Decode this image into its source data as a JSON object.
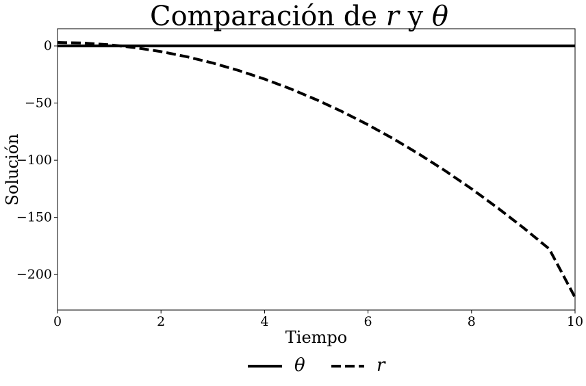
{
  "chart_data": {
    "type": "line",
    "title": "Comparación de r y θ",
    "title_parts": {
      "prefix": "Comparación de ",
      "var1": "r",
      "mid": " y ",
      "var2": "θ"
    },
    "xlabel": "Tiempo",
    "ylabel": "Solución",
    "xlim": [
      0,
      10
    ],
    "ylim": [
      -231,
      15
    ],
    "xticks": [
      0,
      2,
      4,
      6,
      8,
      10
    ],
    "xtick_labels": [
      "0",
      "2",
      "4",
      "6",
      "8",
      "10"
    ],
    "yticks": [
      0,
      -50,
      -100,
      -150,
      -200
    ],
    "ytick_labels": [
      "0",
      "−50",
      "−100",
      "−150",
      "−200"
    ],
    "grid": false,
    "legend_position": "bottom-center, outside plot",
    "series": [
      {
        "name": "θ",
        "style": "solid",
        "color": "#000000",
        "x": [
          0,
          1,
          2,
          3,
          4,
          5,
          6,
          7,
          8,
          9,
          10
        ],
        "y": [
          0,
          0,
          0,
          0,
          0,
          0,
          0,
          0,
          0,
          0,
          0
        ]
      },
      {
        "name": "r",
        "style": "dashed",
        "color": "#000000",
        "x": [
          0,
          0.5,
          1,
          1.5,
          2,
          2.5,
          3,
          3.5,
          4,
          4.5,
          5,
          5.5,
          6,
          6.5,
          7,
          7.5,
          8,
          8.5,
          9,
          9.5,
          10
        ],
        "y": [
          3,
          2.5,
          1,
          -1.5,
          -5,
          -9.5,
          -15,
          -21.5,
          -29,
          -37.5,
          -47,
          -57.5,
          -69,
          -81.5,
          -95,
          -109.5,
          -125,
          -141.5,
          -159,
          -177.5,
          -220
        ]
      }
    ]
  }
}
